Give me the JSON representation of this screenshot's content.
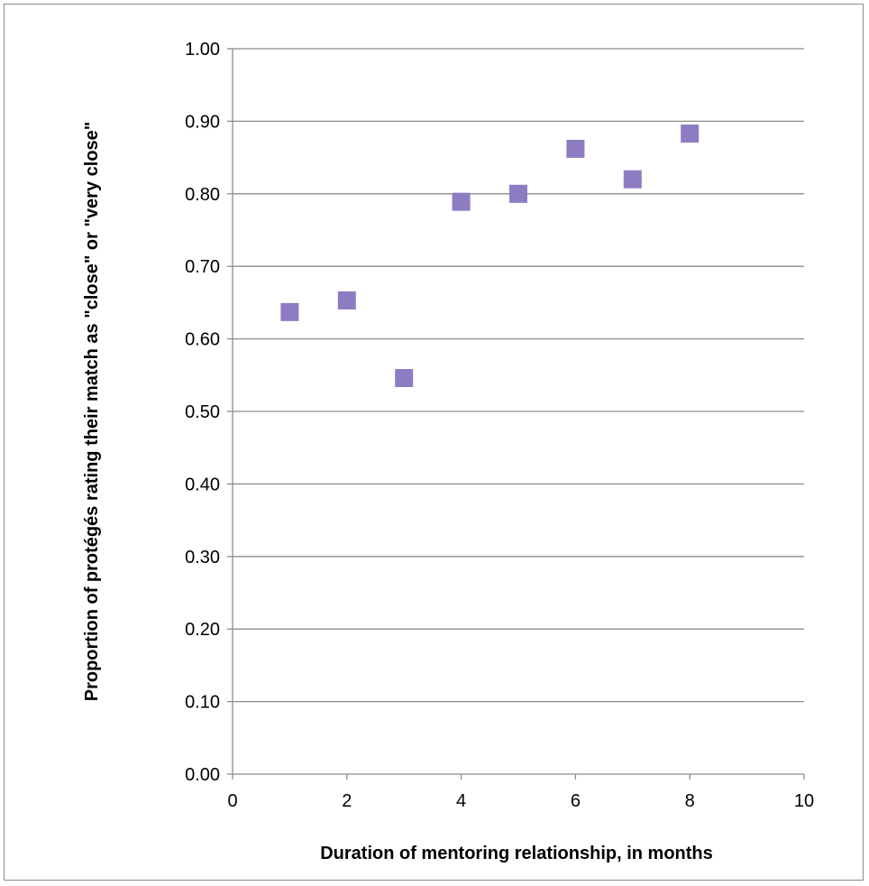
{
  "chart_data": {
    "type": "scatter",
    "title": "",
    "xlabel": "Duration of mentoring relationship, in months",
    "ylabel": "Proportion of protégés rating their match as \"close\" or \"very close\"",
    "xlim": [
      0,
      10
    ],
    "ylim": [
      0,
      1
    ],
    "x_ticks": [
      0,
      2,
      4,
      6,
      8,
      10
    ],
    "x_tick_labels": [
      "0",
      "2",
      "4",
      "6",
      "8",
      "10"
    ],
    "y_ticks": [
      0,
      0.1,
      0.2,
      0.3,
      0.4,
      0.5,
      0.6,
      0.7,
      0.8,
      0.9,
      1.0
    ],
    "y_tick_labels": [
      "0.00",
      "0.10",
      "0.20",
      "0.30",
      "0.40",
      "0.50",
      "0.60",
      "0.70",
      "0.80",
      "0.90",
      "1.00"
    ],
    "grid": "horizontal",
    "marker": "square",
    "marker_color": "#8e7cc3",
    "points": [
      {
        "x": 1,
        "y": 0.637
      },
      {
        "x": 2,
        "y": 0.653
      },
      {
        "x": 3,
        "y": 0.546
      },
      {
        "x": 4,
        "y": 0.789
      },
      {
        "x": 5,
        "y": 0.8
      },
      {
        "x": 6,
        "y": 0.862
      },
      {
        "x": 7,
        "y": 0.82
      },
      {
        "x": 8,
        "y": 0.883
      }
    ]
  }
}
